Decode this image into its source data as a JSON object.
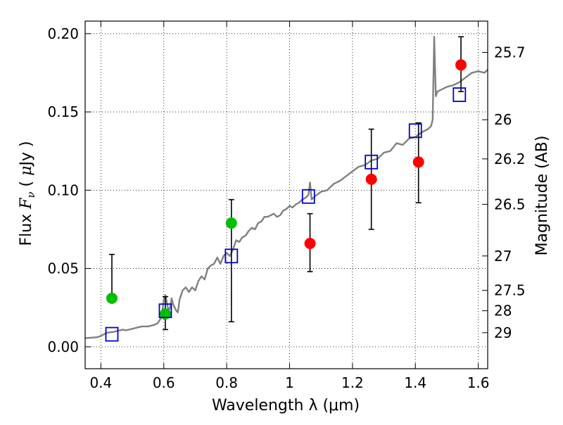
{
  "chart_data": {
    "type": "scatter",
    "xlabel": "Wavelength  λ (μm)",
    "ylabel": "Flux  F_ν  ( μJy )",
    "ylabel_parts": {
      "pre": "Flux  ",
      "sym": "F",
      "sub": "ν",
      "mid": "  ( ",
      "mu": "μ",
      "post": "Jy )"
    },
    "y2label": "Magnitude (AB)",
    "xlim": [
      0.35,
      1.63
    ],
    "ylim": [
      -0.014,
      0.208
    ],
    "grid": true,
    "x_ticks": [
      {
        "value": 0.4,
        "label": "0.4"
      },
      {
        "value": 0.6,
        "label": "0.6"
      },
      {
        "value": 0.8,
        "label": "0.8"
      },
      {
        "value": 1.0,
        "label": "1"
      },
      {
        "value": 1.2,
        "label": "1.2"
      },
      {
        "value": 1.4,
        "label": "1.4"
      },
      {
        "value": 1.6,
        "label": "1.6"
      }
    ],
    "y_ticks": [
      {
        "value": 0.0,
        "label": "0.00"
      },
      {
        "value": 0.05,
        "label": "0.05"
      },
      {
        "value": 0.1,
        "label": "0.10"
      },
      {
        "value": 0.15,
        "label": "0.15"
      },
      {
        "value": 0.2,
        "label": "0.20"
      }
    ],
    "y2_ticks": [
      {
        "flux": 0.188,
        "label": "25.7"
      },
      {
        "flux": 0.145,
        "label": "26"
      },
      {
        "flux": 0.12,
        "label": "26.2"
      },
      {
        "flux": 0.091,
        "label": "26.5"
      },
      {
        "flux": 0.058,
        "label": "27"
      },
      {
        "flux": 0.036,
        "label": "27.5"
      },
      {
        "flux": 0.023,
        "label": "28"
      },
      {
        "flux": 0.009,
        "label": "29"
      }
    ],
    "model_spectrum": {
      "color": "#808080",
      "x": [
        0.35,
        0.37,
        0.39,
        0.4,
        0.42,
        0.44,
        0.46,
        0.47,
        0.48,
        0.5,
        0.51,
        0.53,
        0.55,
        0.57,
        0.58,
        0.59,
        0.595,
        0.6,
        0.605,
        0.61,
        0.615,
        0.62,
        0.625,
        0.63,
        0.64,
        0.645,
        0.65,
        0.66,
        0.67,
        0.68,
        0.69,
        0.7,
        0.71,
        0.72,
        0.73,
        0.74,
        0.75,
        0.76,
        0.77,
        0.78,
        0.79,
        0.8,
        0.81,
        0.82,
        0.83,
        0.84,
        0.85,
        0.86,
        0.87,
        0.88,
        0.89,
        0.9,
        0.91,
        0.92,
        0.93,
        0.94,
        0.95,
        0.96,
        0.97,
        0.98,
        0.99,
        1.0,
        1.01,
        1.02,
        1.03,
        1.04,
        1.05,
        1.06,
        1.065,
        1.07,
        1.08,
        1.1,
        1.12,
        1.14,
        1.16,
        1.18,
        1.2,
        1.22,
        1.24,
        1.26,
        1.28,
        1.3,
        1.32,
        1.34,
        1.36,
        1.38,
        1.4,
        1.42,
        1.44,
        1.45,
        1.455,
        1.46,
        1.465,
        1.47,
        1.48,
        1.5,
        1.52,
        1.54,
        1.56,
        1.58,
        1.6,
        1.62,
        1.63
      ],
      "y": [
        0.0055,
        0.0058,
        0.0062,
        0.007,
        0.009,
        0.0095,
        0.0105,
        0.011,
        0.0105,
        0.0115,
        0.012,
        0.013,
        0.013,
        0.014,
        0.015,
        0.018,
        0.022,
        0.03,
        0.033,
        0.028,
        0.023,
        0.025,
        0.031,
        0.027,
        0.023,
        0.022,
        0.03,
        0.036,
        0.038,
        0.035,
        0.038,
        0.036,
        0.042,
        0.045,
        0.043,
        0.05,
        0.052,
        0.053,
        0.057,
        0.053,
        0.058,
        0.06,
        0.058,
        0.062,
        0.068,
        0.067,
        0.07,
        0.071,
        0.074,
        0.076,
        0.075,
        0.079,
        0.08,
        0.083,
        0.083,
        0.084,
        0.085,
        0.083,
        0.084,
        0.087,
        0.088,
        0.09,
        0.089,
        0.091,
        0.092,
        0.094,
        0.095,
        0.097,
        0.105,
        0.094,
        0.096,
        0.099,
        0.1,
        0.104,
        0.106,
        0.109,
        0.112,
        0.115,
        0.116,
        0.119,
        0.12,
        0.124,
        0.125,
        0.13,
        0.129,
        0.133,
        0.134,
        0.137,
        0.139,
        0.141,
        0.145,
        0.198,
        0.16,
        0.163,
        0.164,
        0.166,
        0.167,
        0.169,
        0.172,
        0.175,
        0.176,
        0.175,
        0.177
      ]
    },
    "series": [
      {
        "marker": "circle",
        "color": "#00c000",
        "x": [
          0.435,
          0.605,
          0.815
        ],
        "y": [
          0.031,
          0.021,
          0.079
        ],
        "yerr_low": [
          0.031,
          0.011,
          0.016
        ],
        "yerr_high": [
          0.059,
          0.032,
          0.094
        ]
      },
      {
        "marker": "circle",
        "color": "#ff0000",
        "x": [
          1.065,
          1.26,
          1.41,
          1.545
        ],
        "y": [
          0.066,
          0.107,
          0.118,
          0.18
        ],
        "yerr_low": [
          0.048,
          0.075,
          0.092,
          0.163
        ],
        "yerr_high": [
          0.085,
          0.139,
          0.143,
          0.198
        ]
      },
      {
        "marker": "open-square",
        "color": "#0000cc",
        "x": [
          0.435,
          0.605,
          0.815,
          1.06,
          1.26,
          1.4,
          1.54
        ],
        "y": [
          0.008,
          0.023,
          0.058,
          0.096,
          0.118,
          0.138,
          0.161
        ]
      }
    ]
  }
}
